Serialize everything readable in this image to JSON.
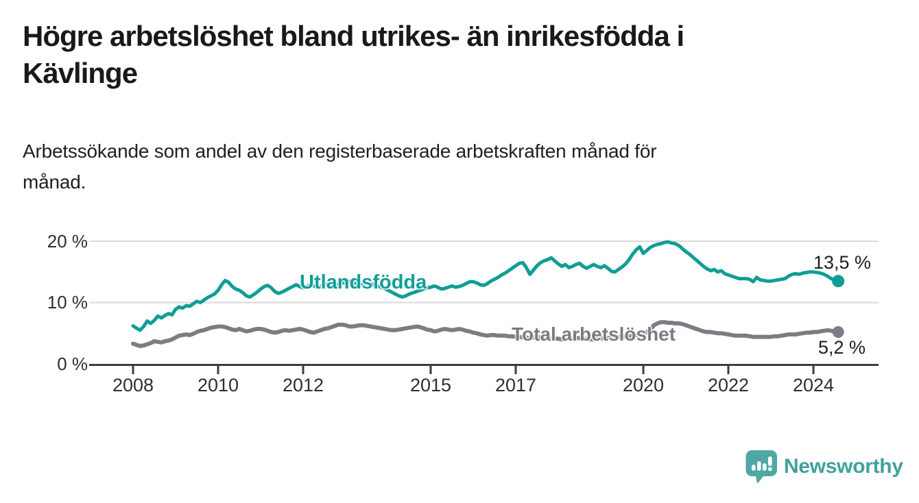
{
  "header": {
    "title_lines": [
      "Högre arbetslöshet bland utrikes- än inrikesfödda i",
      "Kävlinge"
    ],
    "subtitle_lines": [
      "Arbetssökande som andel av den registerbaserade arbetskraften månad för",
      "månad."
    ]
  },
  "chart_data": {
    "type": "line",
    "title": "Högre arbetslöshet bland utrikes- än inrikesfödda i Kävlinge",
    "subtitle": "Arbetssökande som andel av den registerbaserade arbetskraften månad för månad.",
    "x_unit": "month",
    "x_start": "2008-01",
    "x_end": "2024-08",
    "x_step_months": 1,
    "ylim": [
      0,
      20
    ],
    "grid_on": true,
    "grid_values": [
      10,
      20
    ],
    "y_tick_labels": [
      "0 %",
      "10 %",
      "20 %"
    ],
    "y_tick_values": [
      0,
      10,
      20
    ],
    "x_tick_labels": [
      "2008",
      "2010",
      "2012",
      "2015",
      "2017",
      "2020",
      "2022",
      "2024"
    ],
    "x_tick_years": [
      2008,
      2010,
      2012,
      2015,
      2017,
      2020,
      2022,
      2024
    ],
    "legend_position": "inline-labels",
    "colors": {
      "accent_teal": "#0f9e96",
      "neutral_gray": "#7c7c84",
      "grid": "#d9d9d9",
      "axis": "#3d3d3d"
    },
    "series": [
      {
        "name": "Utlandsfödda",
        "color": "#0f9e96",
        "line_width": 5,
        "end_value": 13.5,
        "end_label": "13,5 %",
        "values": [
          6.2,
          5.8,
          5.5,
          6.1,
          7.0,
          6.6,
          7.1,
          7.8,
          7.5,
          7.9,
          8.2,
          8.0,
          8.9,
          9.3,
          9.1,
          9.5,
          9.4,
          9.8,
          10.2,
          10.0,
          10.4,
          10.8,
          11.1,
          11.4,
          12.0,
          12.9,
          13.6,
          13.3,
          12.6,
          12.2,
          12.0,
          11.6,
          11.1,
          10.9,
          11.3,
          11.7,
          12.2,
          12.6,
          12.8,
          12.4,
          11.8,
          11.5,
          11.7,
          12.0,
          12.3,
          12.6,
          12.9,
          12.6,
          12.4,
          12.6,
          12.9,
          12.7,
          12.5,
          12.6,
          12.9,
          13.1,
          12.9,
          12.7,
          13.0,
          13.2,
          13.3,
          13.5,
          13.3,
          13.1,
          12.9,
          13.0,
          13.2,
          13.1,
          12.9,
          12.7,
          12.5,
          12.3,
          12.0,
          11.7,
          11.4,
          11.1,
          10.9,
          11.1,
          11.4,
          11.6,
          11.8,
          12.0,
          12.2,
          12.4,
          12.5,
          12.7,
          12.5,
          12.2,
          12.3,
          12.5,
          12.7,
          12.5,
          12.6,
          12.8,
          13.1,
          13.4,
          13.4,
          13.2,
          12.9,
          12.8,
          13.1,
          13.5,
          13.8,
          14.1,
          14.5,
          14.8,
          15.2,
          15.6,
          16.0,
          16.4,
          16.5,
          15.7,
          14.6,
          15.3,
          16.0,
          16.5,
          16.8,
          17.0,
          17.3,
          16.8,
          16.3,
          15.9,
          16.2,
          15.7,
          15.9,
          16.2,
          16.4,
          15.9,
          15.6,
          15.9,
          16.2,
          15.9,
          15.7,
          16.0,
          15.6,
          15.1,
          15.0,
          15.4,
          15.8,
          16.3,
          17.0,
          17.9,
          18.6,
          19.1,
          18.0,
          18.5,
          19.0,
          19.3,
          19.5,
          19.6,
          19.8,
          19.9,
          19.7,
          19.6,
          19.3,
          18.8,
          18.3,
          17.9,
          17.4,
          16.9,
          16.4,
          15.9,
          15.5,
          15.2,
          15.4,
          15.0,
          15.2,
          14.7,
          14.5,
          14.3,
          14.1,
          13.9,
          13.9,
          13.9,
          13.8,
          13.4,
          14.1,
          13.7,
          13.6,
          13.5,
          13.5,
          13.6,
          13.7,
          13.8,
          13.9,
          14.3,
          14.6,
          14.7,
          14.6,
          14.8,
          14.9,
          15.0,
          15.0,
          14.9,
          14.8,
          14.6,
          14.3,
          13.9,
          13.7,
          13.5
        ]
      },
      {
        "name": "Total arbetslöshet",
        "color": "#7c7c84",
        "line_width": 6,
        "end_value": 5.2,
        "end_label": "5,2 %",
        "values": [
          3.3,
          3.1,
          2.9,
          3.0,
          3.2,
          3.4,
          3.7,
          3.6,
          3.5,
          3.7,
          3.8,
          4.0,
          4.3,
          4.6,
          4.7,
          4.8,
          4.7,
          4.9,
          5.2,
          5.4,
          5.5,
          5.7,
          5.9,
          6.0,
          6.1,
          6.1,
          6.0,
          5.8,
          5.6,
          5.5,
          5.7,
          5.5,
          5.3,
          5.4,
          5.6,
          5.7,
          5.7,
          5.6,
          5.4,
          5.2,
          5.1,
          5.2,
          5.4,
          5.5,
          5.4,
          5.5,
          5.6,
          5.7,
          5.6,
          5.4,
          5.2,
          5.1,
          5.3,
          5.5,
          5.7,
          5.8,
          6.0,
          6.2,
          6.4,
          6.4,
          6.3,
          6.1,
          6.1,
          6.2,
          6.3,
          6.3,
          6.2,
          6.1,
          6.0,
          5.9,
          5.8,
          5.7,
          5.6,
          5.5,
          5.5,
          5.6,
          5.7,
          5.8,
          5.9,
          6.0,
          6.1,
          6.0,
          5.8,
          5.6,
          5.5,
          5.3,
          5.4,
          5.6,
          5.7,
          5.6,
          5.5,
          5.6,
          5.7,
          5.6,
          5.4,
          5.3,
          5.1,
          5.0,
          4.8,
          4.7,
          4.6,
          4.7,
          4.7,
          4.6,
          4.6,
          4.6,
          4.5,
          4.5,
          4.4,
          4.4,
          4.3,
          4.3,
          4.2,
          4.3,
          4.4,
          4.3,
          4.2,
          4.2,
          4.1,
          4.1,
          4.1,
          4.0,
          4.0,
          4.1,
          4.1,
          4.2,
          4.2,
          4.1,
          4.1,
          4.0,
          4.0,
          4.1,
          4.1,
          4.2,
          4.2,
          4.3,
          4.3,
          4.4,
          4.5,
          4.4,
          4.5,
          4.6,
          4.7,
          4.8,
          5.0,
          5.2,
          5.6,
          6.3,
          6.6,
          6.8,
          6.8,
          6.7,
          6.7,
          6.6,
          6.6,
          6.5,
          6.3,
          6.1,
          5.9,
          5.7,
          5.5,
          5.3,
          5.2,
          5.2,
          5.1,
          5.0,
          5.0,
          4.9,
          4.8,
          4.7,
          4.6,
          4.6,
          4.6,
          4.6,
          4.5,
          4.4,
          4.4,
          4.4,
          4.4,
          4.4,
          4.4,
          4.5,
          4.5,
          4.6,
          4.7,
          4.8,
          4.8,
          4.8,
          4.9,
          5.0,
          5.1,
          5.1,
          5.2,
          5.2,
          5.3,
          5.4,
          5.5,
          5.4,
          5.3,
          5.2
        ]
      }
    ]
  },
  "footer": {
    "brand": "Newsworthy",
    "logo_icon": "bar-chart-speech-bubble",
    "brand_color": "#3fa19c",
    "icon_color": "#4fa8a3"
  }
}
